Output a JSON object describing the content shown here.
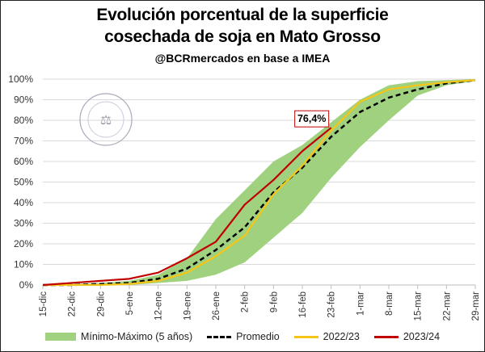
{
  "chart_data": {
    "type": "line",
    "title": "Evolución porcentual de la superficie",
    "title_line2": "cosechada de soja en Mato Grosso",
    "subtitle": "@BCRmercados en base a IMEA",
    "categories": [
      "15-dic",
      "22-dic",
      "29-dic",
      "5-ene",
      "12-ene",
      "19-ene",
      "26-ene",
      "2-feb",
      "9-feb",
      "16-feb",
      "23-feb",
      "1-mar",
      "8-mar",
      "15-mar",
      "22-mar",
      "29-mar"
    ],
    "y_ticks": [
      "0%",
      "10%",
      "20%",
      "30%",
      "40%",
      "50%",
      "60%",
      "70%",
      "80%",
      "90%",
      "100%"
    ],
    "ylim": [
      0,
      100
    ],
    "grid": true,
    "legend_position": "bottom",
    "band": {
      "name": "Mínimo-Máximo (5 años)",
      "color": "#9fd17f",
      "min": [
        0,
        0,
        0,
        0,
        1,
        2,
        5,
        11,
        23,
        35,
        52,
        67,
        80,
        92,
        97,
        99
      ],
      "max": [
        0,
        0.5,
        1,
        2,
        5,
        13,
        32,
        46,
        60,
        68,
        79,
        90,
        97,
        99,
        99.5,
        100
      ]
    },
    "series": [
      {
        "name": "Promedio",
        "color": "#000000",
        "dashed": true,
        "values": [
          0,
          0,
          0.5,
          1,
          3,
          8,
          17,
          28,
          45,
          57,
          72,
          84,
          91,
          95,
          98,
          99.5
        ]
      },
      {
        "name": "2022/23",
        "color": "#f5c518",
        "values": [
          0,
          0,
          0,
          0.5,
          2,
          6,
          14,
          24,
          44,
          58,
          75,
          89,
          95,
          97,
          98.5,
          99.5
        ]
      },
      {
        "name": "2023/24",
        "color": "#c00000",
        "values": [
          0,
          1,
          2,
          3,
          6,
          13,
          21,
          39,
          51,
          65,
          76.4,
          null,
          null,
          null,
          null,
          null
        ]
      }
    ],
    "annotation": "76,4%"
  },
  "watermark": "BOLSA DE COMERCIO DE ROSARIO"
}
